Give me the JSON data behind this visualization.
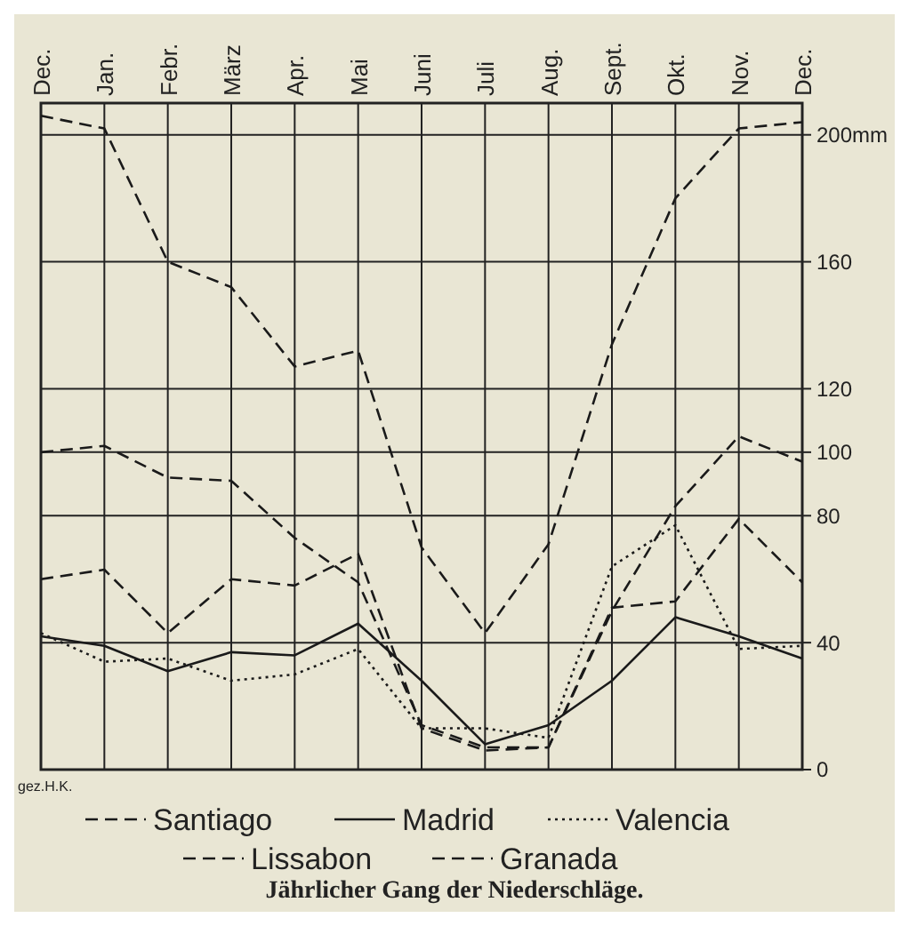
{
  "chart_data": {
    "type": "line",
    "title": "Jährlicher Gang der Niederschläge.",
    "categories": [
      "Dec.",
      "Jan.",
      "Febr.",
      "März",
      "Apr.",
      "Mai",
      "Juni",
      "Juli",
      "Aug.",
      "Sept.",
      "Okt.",
      "Nov.",
      "Dec."
    ],
    "series": [
      {
        "name": "Santiago",
        "color": "#1a1a1a",
        "line_style": "dashed",
        "values": [
          206,
          202,
          160,
          152,
          127,
          132,
          70,
          43,
          71,
          134,
          180,
          202,
          204
        ]
      },
      {
        "name": "Madrid",
        "color": "#1a1a1a",
        "line_style": "solid",
        "values": [
          42,
          39,
          31,
          37,
          36,
          46,
          28,
          8,
          14,
          28,
          48,
          42,
          35
        ]
      },
      {
        "name": "Valencia",
        "color": "#1a1a1a",
        "line_style": "dotted",
        "values": [
          43,
          34,
          35,
          28,
          30,
          38,
          13,
          13,
          10,
          64,
          77,
          38,
          39
        ]
      },
      {
        "name": "Lissabon",
        "color": "#1a1a1a",
        "line_style": "dashed",
        "values": [
          100,
          102,
          92,
          91,
          73,
          59,
          14,
          7,
          7,
          50,
          83,
          105,
          97
        ]
      },
      {
        "name": "Granada",
        "color": "#1a1a1a",
        "line_style": "dashed",
        "values": [
          60,
          63,
          43,
          60,
          58,
          68,
          13,
          6,
          7,
          51,
          53,
          79,
          59
        ]
      }
    ],
    "ylim": [
      0,
      210
    ],
    "yticks": [
      0,
      40,
      80,
      100,
      120,
      160,
      {
        "value": 200,
        "label": "200mm"
      }
    ],
    "grid": true,
    "legend": "bottom",
    "marker": "none",
    "annotations": [
      "gez.H.K."
    ]
  }
}
